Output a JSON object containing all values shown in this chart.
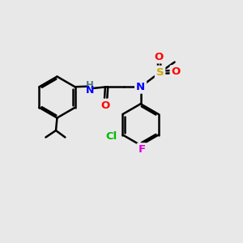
{
  "background_color": "#e8e8e8",
  "bond_color": "#000000",
  "bond_width": 1.8,
  "atom_colors": {
    "N": "#0000ff",
    "O": "#ff0000",
    "S": "#ccaa00",
    "Cl": "#00bb00",
    "F": "#dd00dd",
    "H": "#557777",
    "C": "#000000"
  }
}
